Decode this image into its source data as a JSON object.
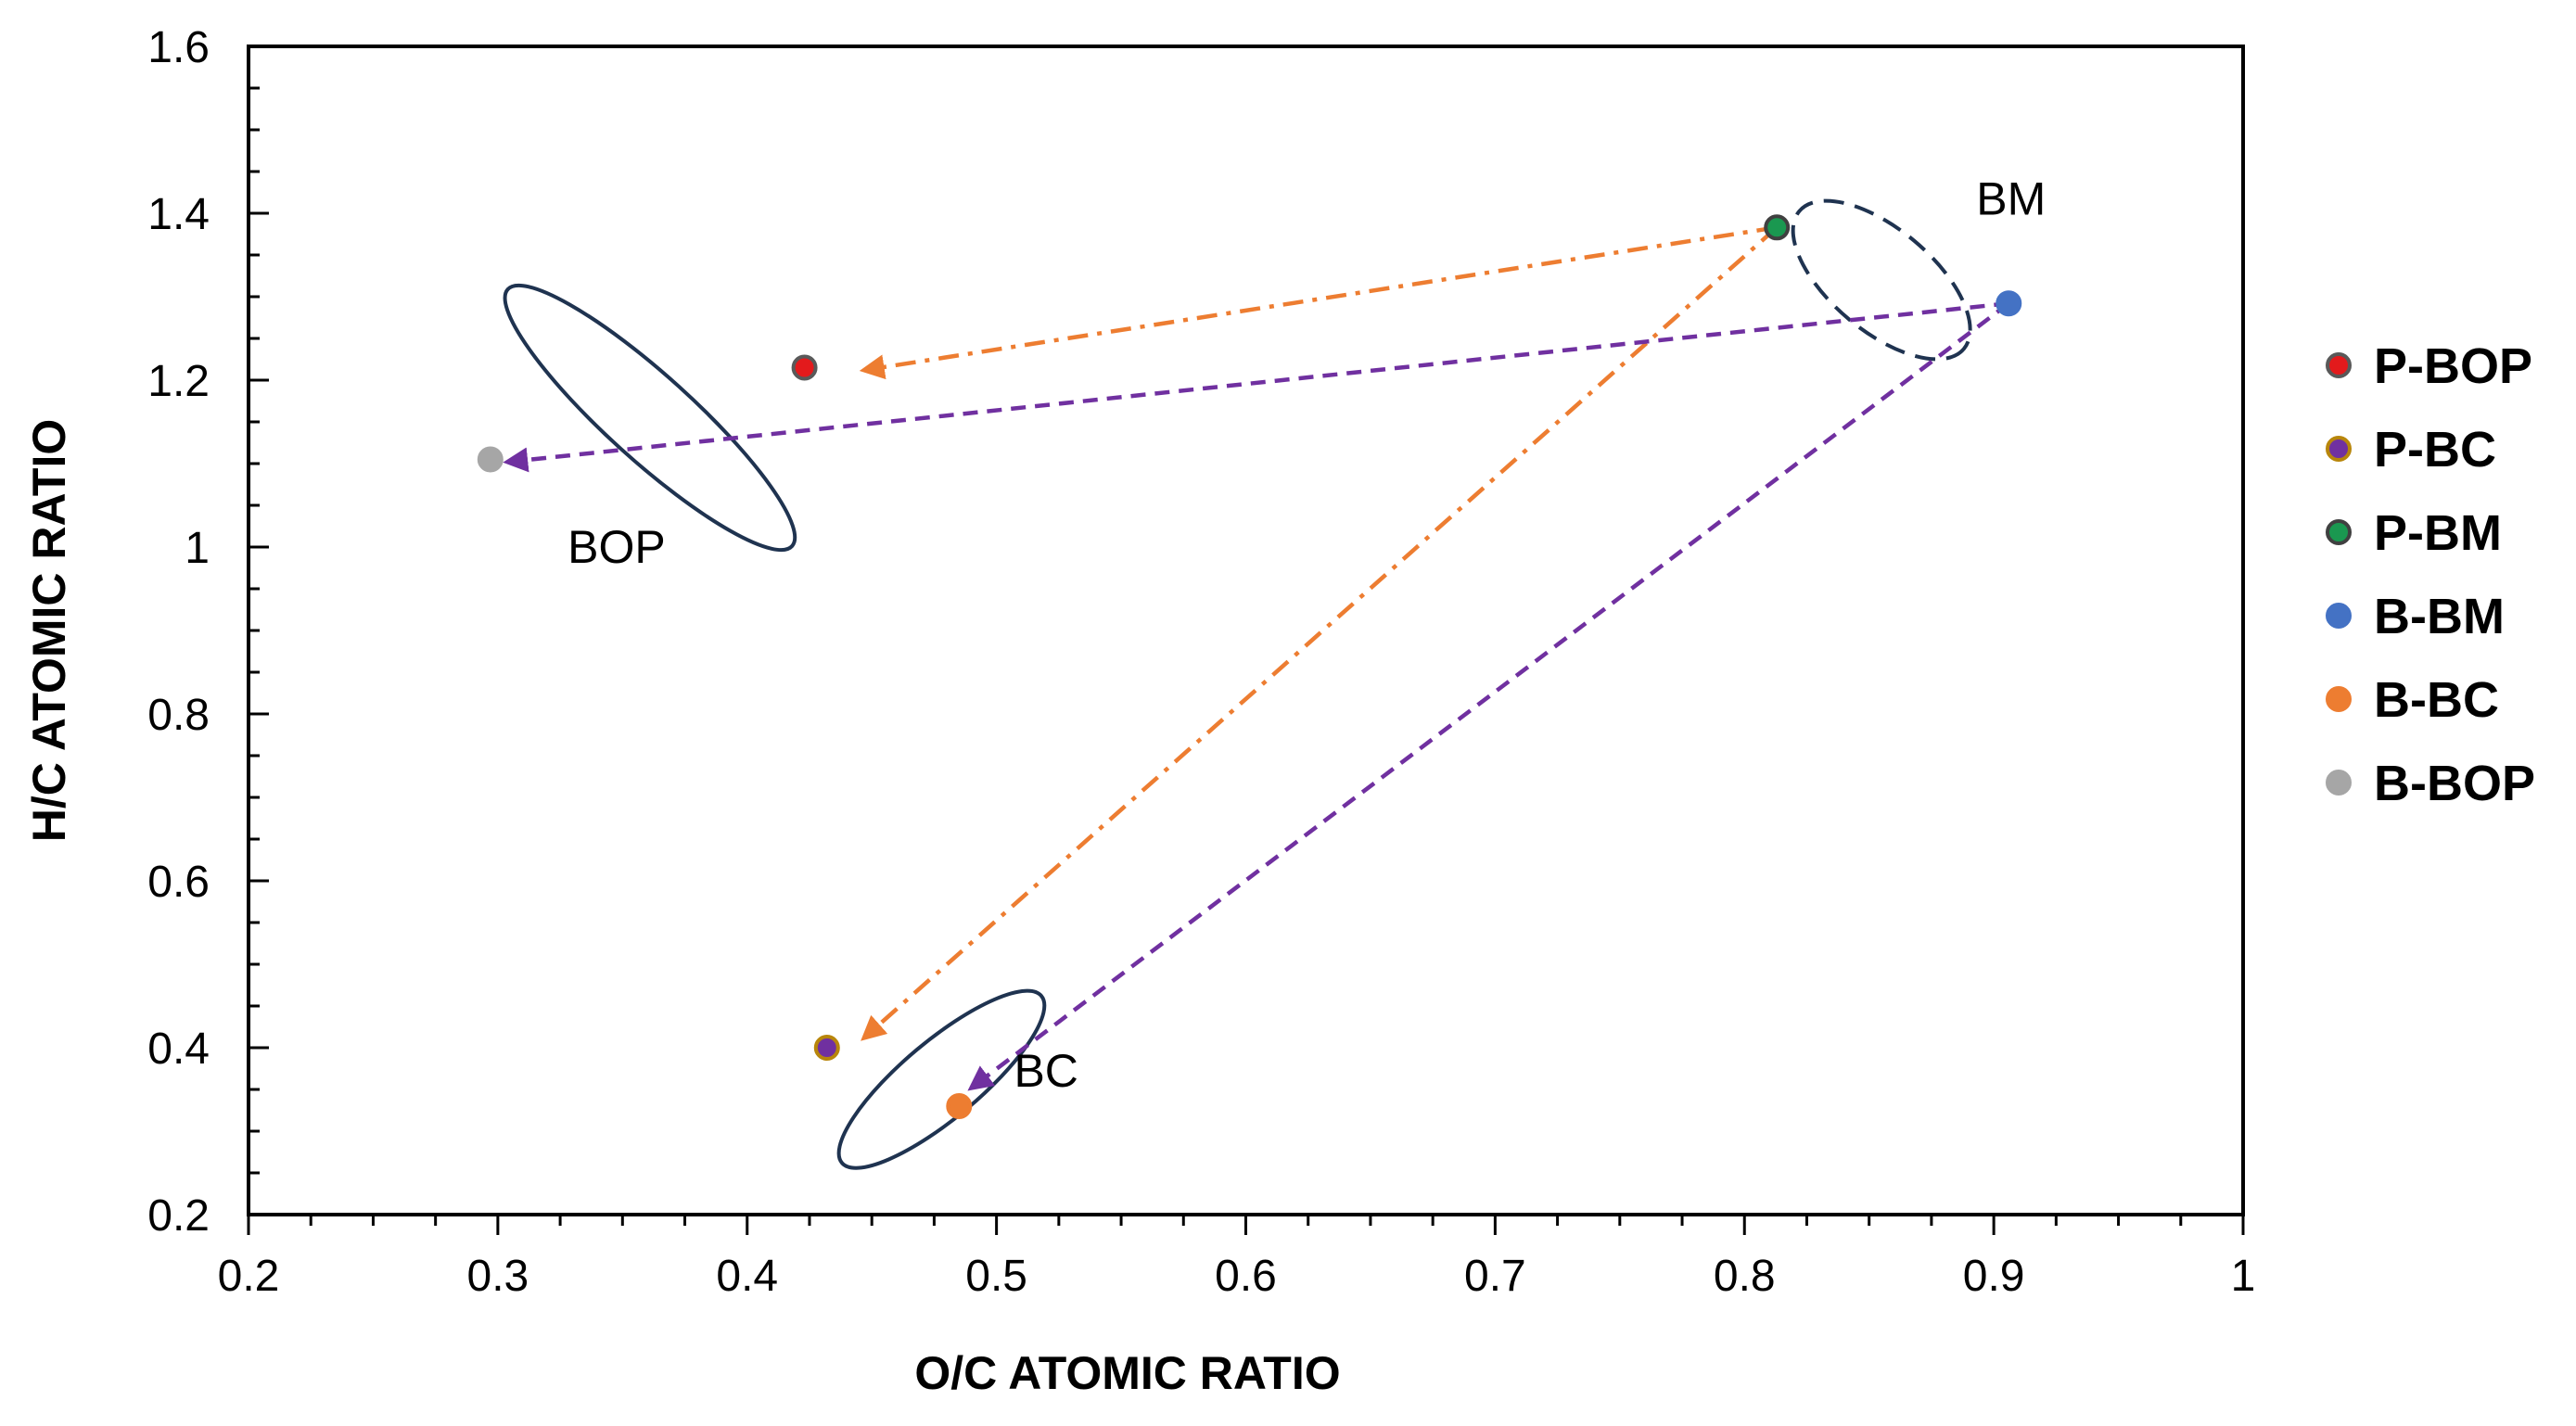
{
  "chart_data": {
    "type": "scatter",
    "title": "",
    "xlabel": "O/C ATOMIC RATIO",
    "ylabel": "H/C ATOMIC RATIO",
    "xlim": [
      0.2,
      1.0
    ],
    "ylim": [
      0.2,
      1.6
    ],
    "xticks": [
      0.2,
      0.3,
      0.4,
      0.5,
      0.6,
      0.7,
      0.8,
      0.9,
      1.0
    ],
    "xtick_labels": [
      "0.2",
      "0.3",
      "0.4",
      "0.5",
      "0.6",
      "0.7",
      "0.8",
      "0.9",
      "1"
    ],
    "yticks": [
      0.2,
      0.4,
      0.6,
      0.8,
      1.0,
      1.2,
      1.4,
      1.6
    ],
    "ytick_labels": [
      "0.2",
      "0.4",
      "0.6",
      "0.8",
      "1",
      "1.2",
      "1.4",
      "1.6"
    ],
    "grid": false,
    "legend_position": "right",
    "series": [
      {
        "name": "P-BOP",
        "x": [
          0.423
        ],
        "y": [
          1.215
        ],
        "color": "#e31a1c",
        "edge": "#595959"
      },
      {
        "name": "P-BC",
        "x": [
          0.432
        ],
        "y": [
          0.4
        ],
        "color": "#7030a0",
        "edge": "#b8860b"
      },
      {
        "name": "P-BM",
        "x": [
          0.813
        ],
        "y": [
          1.383
        ],
        "color": "#1a9850",
        "edge": "#404040"
      },
      {
        "name": "B-BM",
        "x": [
          0.906
        ],
        "y": [
          1.292
        ],
        "color": "#4472c4",
        "edge": "#4472c4"
      },
      {
        "name": "B-BC",
        "x": [
          0.485
        ],
        "y": [
          0.33
        ],
        "color": "#ed7d31",
        "edge": "#ed7d31"
      },
      {
        "name": "B-BOP",
        "x": [
          0.297
        ],
        "y": [
          1.105
        ],
        "color": "#a6a6a6",
        "edge": "#a6a6a6"
      }
    ],
    "arrows": [
      {
        "from": [
          0.813,
          1.383
        ],
        "to": [
          0.447,
          1.212
        ],
        "color": "#ed7d31",
        "style": "dash-dot"
      },
      {
        "from": [
          0.813,
          1.383
        ],
        "to": [
          0.447,
          0.412
        ],
        "color": "#ed7d31",
        "style": "dash-dot"
      },
      {
        "from": [
          0.906,
          1.292
        ],
        "to": [
          0.304,
          1.102
        ],
        "color": "#7030a0",
        "style": "dashed"
      },
      {
        "from": [
          0.906,
          1.292
        ],
        "to": [
          0.49,
          0.352
        ],
        "color": "#7030a0",
        "style": "dashed"
      }
    ],
    "groups": [
      {
        "label": "BOP",
        "center": [
          0.361,
          1.155
        ],
        "rx": 0.057,
        "ry": 0.125,
        "angle": -2.7,
        "style": "solid",
        "label_at": [
          0.328,
          1.0
        ]
      },
      {
        "label": "BC",
        "center": [
          0.478,
          0.362
        ],
        "rx": 0.04,
        "ry": 0.11,
        "angle": 2.5,
        "style": "solid",
        "label_at": [
          0.507,
          0.372
        ]
      },
      {
        "label": "BM",
        "center": [
          0.855,
          1.32
        ],
        "rx": 0.033,
        "ry": 0.145,
        "angle": -2.5,
        "style": "dashed",
        "label_at": [
          0.893,
          1.417
        ]
      }
    ]
  }
}
